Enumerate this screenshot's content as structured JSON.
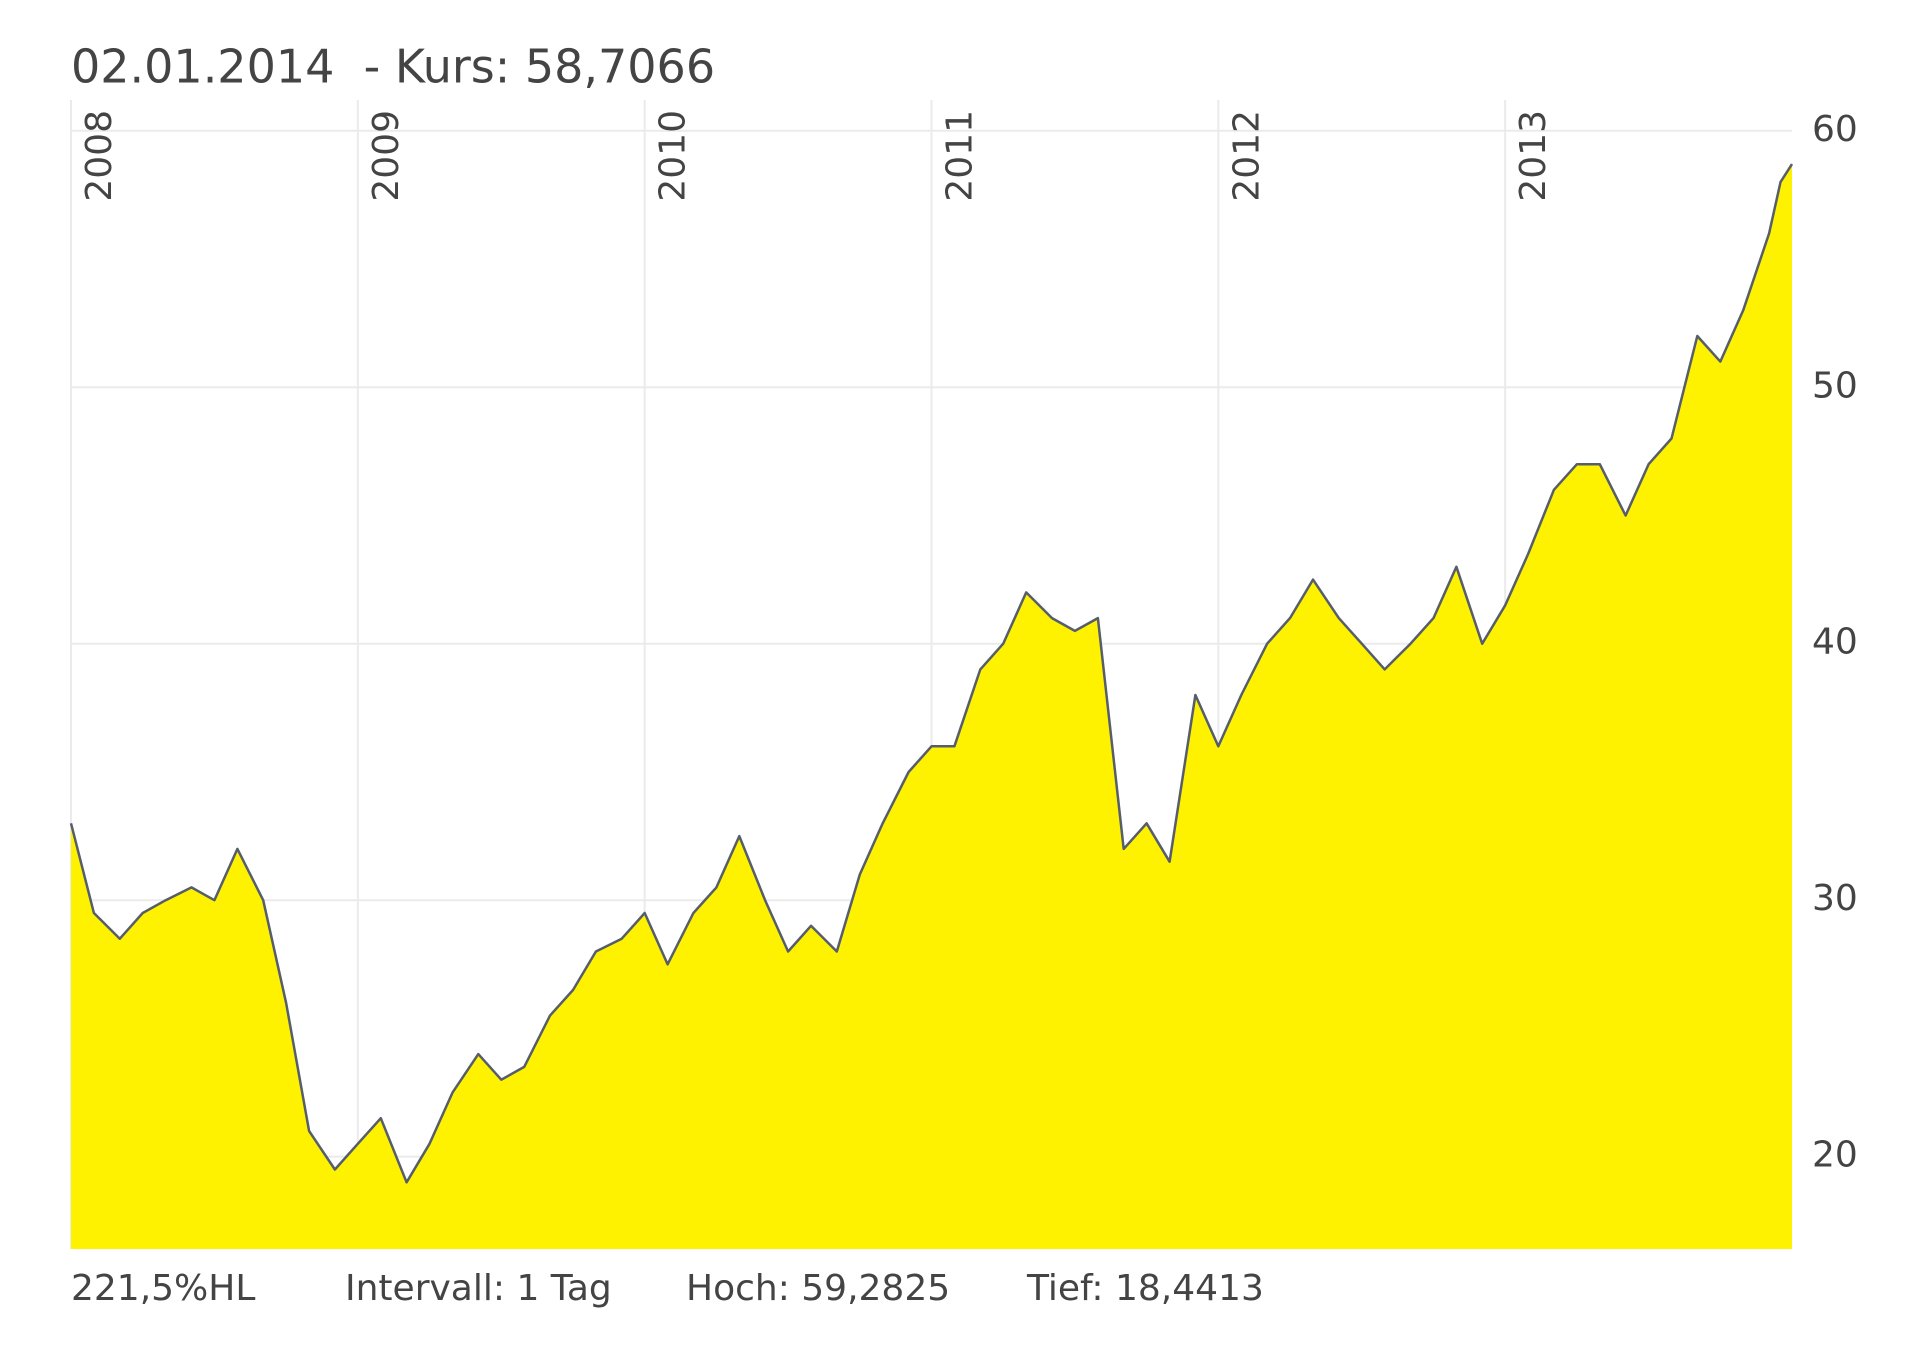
{
  "chart_data": {
    "type": "area",
    "title": "02.01.2014  - Kurs: 58,7066",
    "footer": [
      "221,5%HL",
      "Intervall: 1 Tag",
      "Hoch: 59,2825",
      "Tief: 18,4413"
    ],
    "x": [
      2008.0,
      2008.08,
      2008.17,
      2008.25,
      2008.33,
      2008.42,
      2008.5,
      2008.58,
      2008.67,
      2008.75,
      2008.83,
      2008.92,
      2009.0,
      2009.08,
      2009.17,
      2009.25,
      2009.33,
      2009.42,
      2009.5,
      2009.58,
      2009.67,
      2009.75,
      2009.83,
      2009.92,
      2010.0,
      2010.08,
      2010.17,
      2010.25,
      2010.33,
      2010.42,
      2010.5,
      2010.58,
      2010.67,
      2010.75,
      2010.83,
      2010.92,
      2011.0,
      2011.08,
      2011.17,
      2011.25,
      2011.33,
      2011.42,
      2011.5,
      2011.58,
      2011.67,
      2011.75,
      2011.83,
      2011.92,
      2012.0,
      2012.08,
      2012.17,
      2012.25,
      2012.33,
      2012.42,
      2012.5,
      2012.58,
      2012.67,
      2012.75,
      2012.83,
      2012.92,
      2013.0,
      2013.08,
      2013.17,
      2013.25,
      2013.33,
      2013.42,
      2013.5,
      2013.58,
      2013.67,
      2013.75,
      2013.83,
      2013.92,
      2013.96,
      2014.0
    ],
    "values": [
      33,
      29.5,
      28.5,
      29.5,
      30,
      30.5,
      30,
      32,
      30,
      26,
      21,
      19.5,
      20.5,
      21.5,
      19,
      20.5,
      22.5,
      24,
      23,
      23.5,
      25.5,
      26.5,
      28,
      28.5,
      29.5,
      27.5,
      29.5,
      30.5,
      32.5,
      30,
      28,
      29,
      28,
      31,
      33,
      35,
      36,
      36,
      39,
      40,
      42,
      41,
      40.5,
      41,
      32,
      33,
      31.5,
      38,
      36,
      38,
      40,
      41,
      42.5,
      41,
      40,
      39,
      40,
      41,
      43,
      40,
      41.5,
      43.5,
      46,
      47,
      47,
      45,
      47,
      48,
      52,
      51,
      53,
      56,
      58,
      58.7
    ],
    "color": "#fff200",
    "line_color": "#555e6a",
    "xlim": [
      2008,
      2014
    ],
    "xticks": [
      2008,
      2009,
      2010,
      2011,
      2012,
      2013
    ],
    "ylim": [
      16.4,
      61.2
    ],
    "yticks": [
      20,
      30,
      40,
      50,
      60
    ],
    "grid": true
  }
}
